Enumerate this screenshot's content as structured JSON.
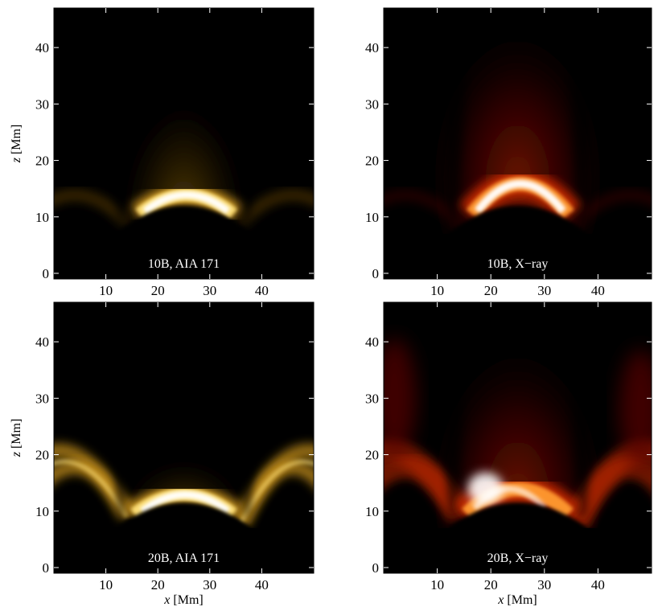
{
  "figure": {
    "x_axis_label": "[Mm]",
    "x_axis_var": "x",
    "y_axis_label": "[Mm]",
    "y_axis_var": "z"
  },
  "chart_data": [
    {
      "type": "heatmap",
      "label": "10B, AIA 171",
      "colormap": "yellow-orange (AIA 171)",
      "colors": [
        "#000000",
        "#5a3a00",
        "#d49a20",
        "#ffe27a",
        "#ffffff"
      ],
      "xlim": [
        0,
        50
      ],
      "ylim": [
        -1,
        47
      ],
      "xticks": [
        10,
        20,
        30,
        40
      ],
      "yticks": [
        0,
        10,
        20,
        30,
        40
      ],
      "features": [
        "bright central arch, x 16 to 35 Mm, apex z ~ 15 Mm",
        "faint side arcs z ~ 10-14 Mm",
        "dark wedges at x ~ 13 and x ~ 37 Mm"
      ]
    },
    {
      "type": "heatmap",
      "label": "10B, X−ray",
      "colormap": "red-white (X-ray)",
      "colors": [
        "#000000",
        "#5a0000",
        "#c82800",
        "#ff9a30",
        "#ffffff"
      ],
      "xlim": [
        0,
        50
      ],
      "ylim": [
        -1,
        47
      ],
      "xticks": [
        10,
        20,
        30,
        40
      ],
      "yticks": [
        0,
        10,
        20,
        30,
        40
      ],
      "features": [
        "bright central arch, x 16 to 35 Mm, apex z ~ 17 Mm",
        "diffuse red glow above x 15 to 35 Mm",
        "dark wedges at x ~ 13 and x ~ 37 Mm"
      ]
    },
    {
      "type": "heatmap",
      "label": "20B, AIA 171",
      "colormap": "yellow-orange (AIA 171)",
      "colors": [
        "#000000",
        "#5a3a00",
        "#d49a20",
        "#ffe27a",
        "#ffffff"
      ],
      "xlim": [
        0,
        50
      ],
      "ylim": [
        -1,
        47
      ],
      "xticks": [
        10,
        20,
        30,
        40
      ],
      "yticks": [
        0,
        10,
        20,
        30,
        40
      ],
      "features": [
        "bright central arch, x 15 to 35 Mm, apex z ~ 14 Mm",
        "bright side arcs rising to z ~ 20 Mm at x = 0 and x = 50",
        "dark wedges at x ~ 13 and x ~ 37 Mm"
      ]
    },
    {
      "type": "heatmap",
      "label": "20B, X−ray",
      "colormap": "red-white (X-ray)",
      "colors": [
        "#000000",
        "#5a0000",
        "#c82800",
        "#ff9a30",
        "#ffffff"
      ],
      "xlim": [
        0,
        50
      ],
      "ylim": [
        -1,
        47
      ],
      "xticks": [
        10,
        20,
        30,
        40
      ],
      "yticks": [
        0,
        10,
        20,
        30,
        40
      ],
      "features": [
        "bright arch peaking on the left footpoint near x ~ 17 Mm, z ~ 14 Mm",
        "red side lobes at the left and right edges, z 15 to 40 Mm",
        "dark wedges at x ~ 13 and x ~ 37 Mm"
      ]
    }
  ]
}
